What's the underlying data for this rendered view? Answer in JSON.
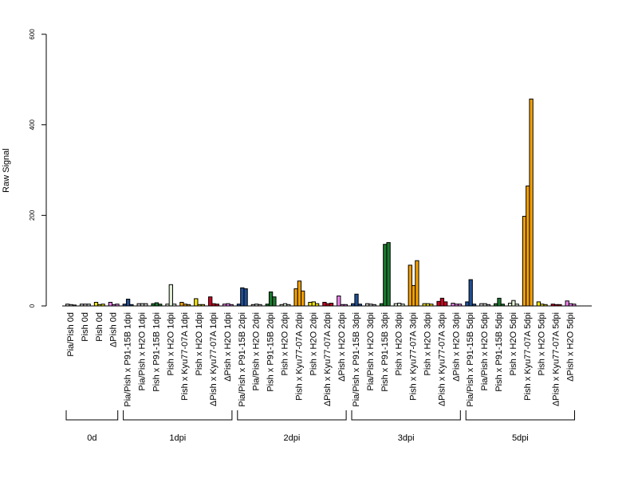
{
  "chart_data": {
    "type": "bar",
    "title": "",
    "xlabel": "",
    "ylabel": "Raw Signal",
    "ylim": [
      0,
      600
    ],
    "yticks": [
      0,
      200,
      400,
      600
    ],
    "grid": false,
    "legend": "none",
    "categories": [
      "Pia/Pish 0d",
      "Pish 0d",
      "Pish 0d",
      "ΔPish 0d",
      "Pia/Pish x P91-15B 1dpi",
      "Pia/Pish x H2O 1dpi",
      "Pish x P91-15B 1dpi",
      "Pish x H2O 1dpi",
      "Pish x Kyu77-07A 1dpi",
      "Pish x H2O 1dpi",
      "ΔPish x Kyu77-07A 1dpi",
      "ΔPish x H2O 1dpi",
      "Pia/Pish x P91-15B 2dpi",
      "Pia/Pish x H2O 2dpi",
      "Pish x P91-15B 2dpi",
      "Pish x H2O 2dpi",
      "Pish x Kyu77-07A 2dpi",
      "Pish x H2O 2dpi",
      "ΔPish x Kyu77-07A 2dpi",
      "ΔPish x H2O 2dpi",
      "Pia/Pish x P91-15B 3dpi",
      "Pia/Pish x H2O 3dpi",
      "Pish x P91-15B 3dpi",
      "Pish x H2O 3dpi",
      "Pish x Kyu77-07A 3dpi",
      "Pish x H2O 3dpi",
      "ΔPish x Kyu77-07A 3dpi",
      "ΔPish x H2O 3dpi",
      "Pia/Pish x P91-15B 5dpi",
      "Pia/Pish x H2O 5dpi",
      "Pish x P91-15B 5dpi",
      "Pish x H2O 5dpi",
      "Pish x Kyu77-07A 5dpi",
      "Pish x H2O 5dpi",
      "ΔPish x Kyu77-07A 5dpi",
      "ΔPish x H2O 5dpi"
    ],
    "colors": [
      "#cccccc",
      "#cccccc",
      "#f5e600",
      "#ee82ee",
      "#1f4e96",
      "#cccccc",
      "#1a7a2e",
      "#e3f2d9",
      "#f5a000",
      "#f5e600",
      "#cc0022",
      "#ee82ee",
      "#1f4e96",
      "#cccccc",
      "#1a7a2e",
      "#e3f2d9",
      "#f5a000",
      "#f5e600",
      "#cc0022",
      "#ee82ee",
      "#1f4e96",
      "#cccccc",
      "#1a7a2e",
      "#e3f2d9",
      "#f5a000",
      "#f5e600",
      "#cc0022",
      "#ee82ee",
      "#1f4e96",
      "#cccccc",
      "#1a7a2e",
      "#e3f2d9",
      "#f5a000",
      "#f5e600",
      "#cc0022",
      "#ee82ee"
    ],
    "values": [
      [
        4,
        3,
        2
      ],
      [
        4,
        4,
        4
      ],
      [
        8,
        3,
        4
      ],
      [
        8,
        3,
        4
      ],
      [
        4,
        15,
        3
      ],
      [
        5,
        5,
        5
      ],
      [
        5,
        7,
        4
      ],
      [
        4,
        47,
        4
      ],
      [
        8,
        4,
        3
      ],
      [
        16,
        3,
        3
      ],
      [
        20,
        5,
        4
      ],
      [
        4,
        5,
        3
      ],
      [
        4,
        40,
        38
      ],
      [
        3,
        4,
        3
      ],
      [
        4,
        31,
        20
      ],
      [
        3,
        5,
        3
      ],
      [
        38,
        55,
        33
      ],
      [
        8,
        9,
        5
      ],
      [
        8,
        5,
        6
      ],
      [
        22,
        3,
        3
      ],
      [
        5,
        26,
        4
      ],
      [
        5,
        4,
        3
      ],
      [
        5,
        136,
        140
      ],
      [
        5,
        6,
        4
      ],
      [
        90,
        45,
        100
      ],
      [
        5,
        5,
        4
      ],
      [
        10,
        17,
        9
      ],
      [
        6,
        4,
        4
      ],
      [
        9,
        58,
        4
      ],
      [
        5,
        5,
        3
      ],
      [
        5,
        17,
        4
      ],
      [
        6,
        12,
        4
      ],
      [
        198,
        265,
        457
      ],
      [
        9,
        4,
        3
      ],
      [
        4,
        3,
        3
      ],
      [
        11,
        5,
        4
      ]
    ],
    "groups": [
      {
        "label": "0d",
        "start": 0,
        "end": 3
      },
      {
        "label": "1dpi",
        "start": 4,
        "end": 11
      },
      {
        "label": "2dpi",
        "start": 12,
        "end": 19
      },
      {
        "label": "3dpi",
        "start": 20,
        "end": 27
      },
      {
        "label": "5dpi",
        "start": 28,
        "end": 35
      }
    ]
  }
}
